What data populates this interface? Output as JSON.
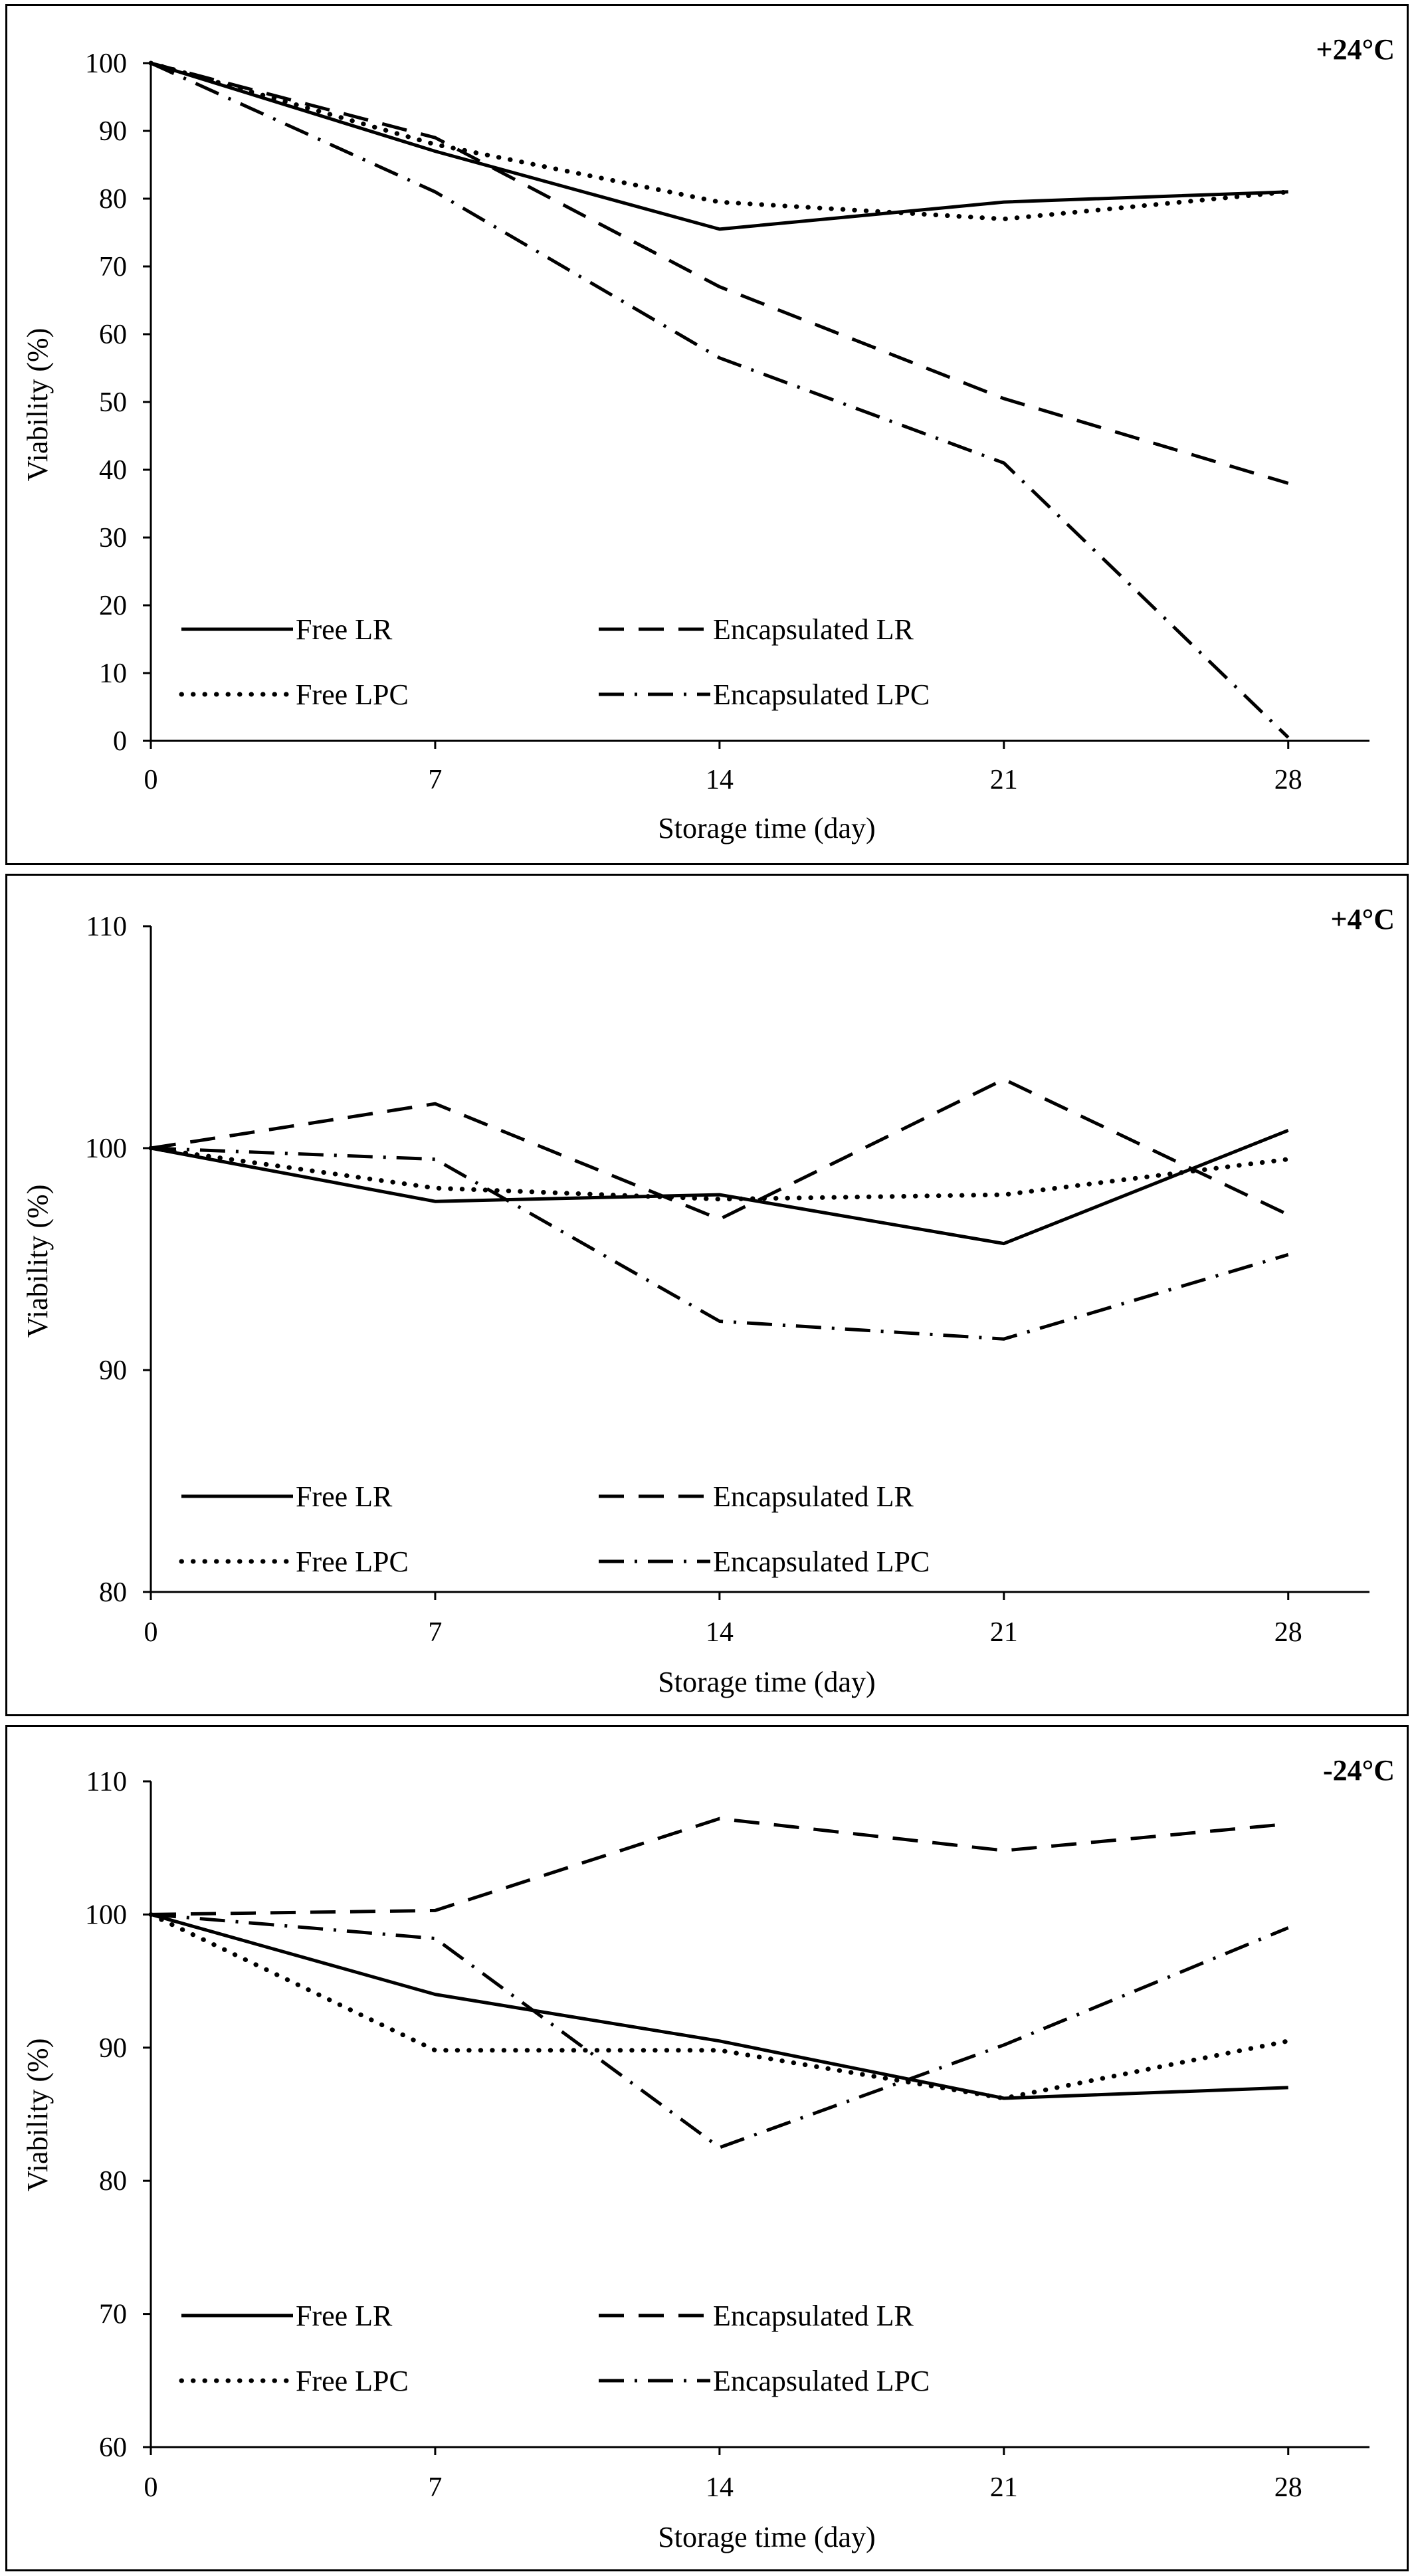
{
  "line_color": "#000000",
  "chart_data": [
    {
      "type": "line",
      "panel_label": "+24°C",
      "xlabel": "Storage time (day)",
      "ylabel": "Viability (%)",
      "x": [
        0,
        7,
        14,
        21,
        28
      ],
      "x_ticks": [
        "0",
        "7",
        "14",
        "21",
        "28"
      ],
      "ylim": [
        0,
        100
      ],
      "y_ticks": [
        "0",
        "10",
        "20",
        "30",
        "40",
        "50",
        "60",
        "70",
        "80",
        "90",
        "100"
      ],
      "grid": false,
      "legend_position": "bottom-left",
      "series": [
        {
          "name": "Free LR",
          "style": "solid",
          "values": [
            100,
            87,
            75.5,
            79.5,
            81
          ]
        },
        {
          "name": "Encapsulated LR",
          "style": "dashed",
          "values": [
            100,
            89,
            67,
            50.5,
            38
          ]
        },
        {
          "name": "Free LPC",
          "style": "dotted",
          "values": [
            100,
            88,
            79.5,
            77,
            81
          ]
        },
        {
          "name": "Encapsulated LPC",
          "style": "dashdot",
          "values": [
            100,
            81,
            56.5,
            41,
            0.5
          ]
        }
      ]
    },
    {
      "type": "line",
      "panel_label": "+4°C",
      "xlabel": "Storage time (day)",
      "ylabel": "Viability (%)",
      "x": [
        0,
        7,
        14,
        21,
        28
      ],
      "x_ticks": [
        "0",
        "7",
        "14",
        "21",
        "28"
      ],
      "ylim": [
        80,
        110
      ],
      "y_ticks": [
        "80",
        "90",
        "100",
        "110"
      ],
      "grid": false,
      "legend_position": "bottom-left",
      "series": [
        {
          "name": "Free LR",
          "style": "solid",
          "values": [
            100,
            97.6,
            97.9,
            95.7,
            100.8
          ]
        },
        {
          "name": "Encapsulated LR",
          "style": "dashed",
          "values": [
            100,
            102,
            96.8,
            103.1,
            97
          ]
        },
        {
          "name": "Free LPC",
          "style": "dotted",
          "values": [
            100,
            98.2,
            97.7,
            97.9,
            99.5
          ]
        },
        {
          "name": "Encapsulated LPC",
          "style": "dashdot",
          "values": [
            100,
            99.5,
            92.2,
            91.4,
            95.2
          ]
        }
      ]
    },
    {
      "type": "line",
      "panel_label": "-24°C",
      "xlabel": "Storage time (day)",
      "ylabel": "Viability (%)",
      "x": [
        0,
        7,
        14,
        21,
        28
      ],
      "x_ticks": [
        "0",
        "7",
        "14",
        "21",
        "28"
      ],
      "ylim": [
        60,
        110
      ],
      "y_ticks": [
        "60",
        "70",
        "80",
        "90",
        "100",
        "110"
      ],
      "grid": false,
      "legend_position": "bottom-left",
      "series": [
        {
          "name": "Free LR",
          "style": "solid",
          "values": [
            100,
            94,
            90.5,
            86.2,
            87
          ]
        },
        {
          "name": "Encapsulated LR",
          "style": "dashed",
          "values": [
            100,
            100.3,
            107.2,
            104.8,
            106.8
          ]
        },
        {
          "name": "Free LPC",
          "style": "dotted",
          "values": [
            100,
            89.8,
            89.8,
            86.2,
            90.5
          ]
        },
        {
          "name": "Encapsulated LPC",
          "style": "dashdot",
          "values": [
            100,
            98.2,
            82.5,
            90.2,
            99
          ]
        }
      ]
    }
  ]
}
